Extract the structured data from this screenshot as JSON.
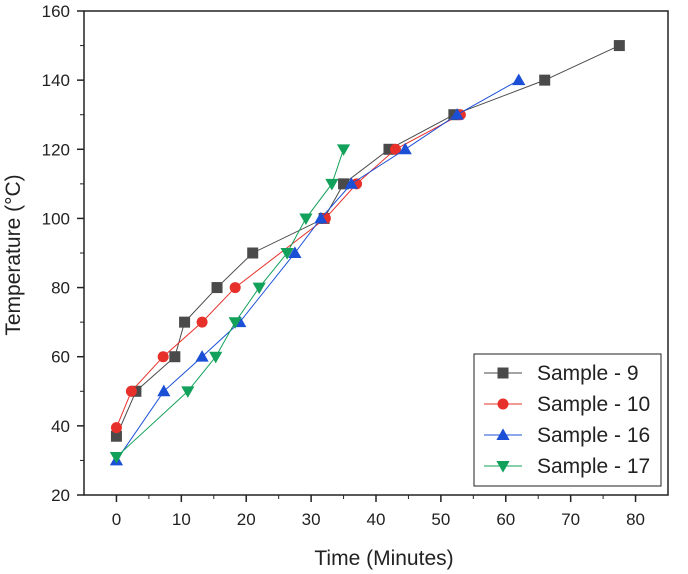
{
  "chart_data": {
    "type": "line",
    "title": "",
    "xlabel": "Time (Minutes)",
    "ylabel": "Temperature (°C)",
    "xlim": [
      -5,
      85
    ],
    "ylim": [
      20,
      160
    ],
    "xticks": [
      0,
      10,
      20,
      30,
      40,
      50,
      60,
      70,
      80
    ],
    "yticks": [
      20,
      40,
      60,
      80,
      100,
      120,
      140,
      160
    ],
    "legend_position": "bottom-right",
    "series": [
      {
        "name": "Sample - 9",
        "marker": "square",
        "color": "#4a4a4a",
        "x": [
          0,
          3,
          9,
          10.5,
          15.5,
          21,
          32,
          35,
          42,
          52,
          66,
          77.5
        ],
        "y": [
          37,
          50,
          60,
          70,
          80,
          90,
          100,
          110,
          120,
          130,
          140,
          150
        ]
      },
      {
        "name": "Sample - 10",
        "marker": "circle",
        "color": "#e8302a",
        "x": [
          0,
          2.3,
          7.2,
          13.2,
          18.3,
          32.2,
          37,
          43,
          53
        ],
        "y": [
          39.5,
          50,
          60,
          70,
          80,
          100,
          110,
          120,
          130
        ]
      },
      {
        "name": "Sample - 16",
        "marker": "triangle-up",
        "color": "#1a4fd6",
        "x": [
          0,
          7.3,
          13.2,
          19,
          27.5,
          31.5,
          36.2,
          44.5,
          52.5,
          62
        ],
        "y": [
          30,
          50,
          60,
          70,
          90,
          100,
          110,
          120,
          130,
          140
        ]
      },
      {
        "name": "Sample - 17",
        "marker": "triangle-down",
        "color": "#12a15a",
        "x": [
          0,
          11,
          15.3,
          18.3,
          22,
          26.3,
          29.2,
          33.2,
          35
        ],
        "y": [
          31,
          50,
          60,
          70,
          80,
          90,
          100,
          110,
          120
        ]
      }
    ]
  }
}
